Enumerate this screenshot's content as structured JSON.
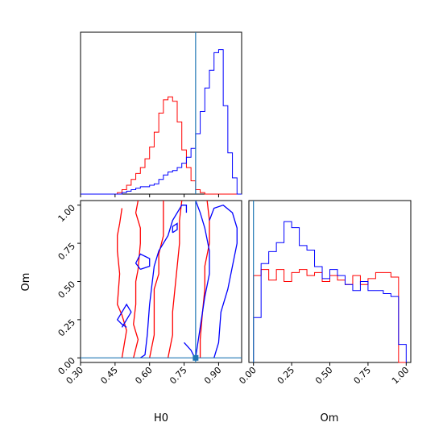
{
  "chart_data": {
    "type": "corner",
    "colors": {
      "series_a": "#ff0000",
      "series_b": "#0000ff",
      "truth": "#1f77b4"
    },
    "truth": {
      "H0": 0.8,
      "Om": 0.0
    },
    "axes": {
      "H0": {
        "label": "H0",
        "range": [
          0.3,
          1.0
        ],
        "ticks": [
          "0.30",
          "0.45",
          "0.60",
          "0.75",
          "0.90"
        ],
        "tick_values": [
          0.3,
          0.45,
          0.6,
          0.75,
          0.9
        ]
      },
      "Om": {
        "label": "Om",
        "range": [
          -0.03,
          1.03
        ],
        "ticks": [
          "0.00",
          "0.25",
          "0.50",
          "0.75",
          "1.00"
        ],
        "tick_values": [
          0,
          0.25,
          0.5,
          0.75,
          1.0
        ]
      }
    },
    "hist_H0": {
      "bin_edges": [
        0.3,
        0.32,
        0.34,
        0.36,
        0.38,
        0.4,
        0.42,
        0.44,
        0.46,
        0.48,
        0.5,
        0.52,
        0.54,
        0.56,
        0.58,
        0.6,
        0.62,
        0.64,
        0.66,
        0.68,
        0.7,
        0.72,
        0.74,
        0.76,
        0.78,
        0.8,
        0.82,
        0.84,
        0.86,
        0.88,
        0.9,
        0.92,
        0.94,
        0.96,
        0.98,
        1.0
      ],
      "series": [
        {
          "color": "red",
          "counts": [
            0,
            0,
            0,
            0,
            0,
            0,
            0,
            0,
            0.01,
            0.03,
            0.06,
            0.1,
            0.14,
            0.18,
            0.24,
            0.32,
            0.42,
            0.55,
            0.64,
            0.66,
            0.63,
            0.49,
            0.3,
            0.18,
            0.09,
            0.03,
            0.01,
            0,
            0,
            0,
            0,
            0,
            0,
            0,
            0
          ]
        },
        {
          "color": "blue",
          "counts": [
            0,
            0,
            0,
            0,
            0,
            0,
            0,
            0,
            0,
            0.01,
            0.02,
            0.03,
            0.04,
            0.05,
            0.05,
            0.06,
            0.07,
            0.1,
            0.13,
            0.15,
            0.16,
            0.18,
            0.21,
            0.25,
            0.31,
            0.41,
            0.56,
            0.72,
            0.84,
            0.96,
            0.98,
            0.6,
            0.28,
            0.11,
            0
          ]
        }
      ]
    },
    "hist_Om": {
      "bin_edges": [
        0.0,
        0.05,
        0.1,
        0.15,
        0.2,
        0.25,
        0.3,
        0.35,
        0.4,
        0.45,
        0.5,
        0.55,
        0.6,
        0.65,
        0.7,
        0.75,
        0.8,
        0.85,
        0.9,
        0.95,
        1.0
      ],
      "series": [
        {
          "color": "red",
          "counts": [
            0.58,
            0.62,
            0.55,
            0.62,
            0.54,
            0.6,
            0.62,
            0.58,
            0.6,
            0.54,
            0.58,
            0.55,
            0.52,
            0.58,
            0.52,
            0.56,
            0.6,
            0.6,
            0.57,
            0.0
          ]
        },
        {
          "color": "blue",
          "counts": [
            0.3,
            0.66,
            0.74,
            0.8,
            0.94,
            0.9,
            0.78,
            0.75,
            0.64,
            0.56,
            0.62,
            0.58,
            0.52,
            0.48,
            0.54,
            0.48,
            0.48,
            0.46,
            0.44,
            0.12
          ]
        }
      ]
    },
    "contours": {
      "series_a": [
        {
          "H0": [
            0.48,
            0.5,
            0.48,
            0.46,
            0.47,
            0.46,
            0.46,
            0.47,
            0.48
          ],
          "Om": [
            0.0,
            0.18,
            0.28,
            0.35,
            0.55,
            0.7,
            0.8,
            0.88,
            0.98
          ]
        },
        {
          "H0": [
            0.53,
            0.55,
            0.53,
            0.54,
            0.54,
            0.55,
            0.56,
            0.56,
            0.54,
            0.55
          ],
          "Om": [
            0.0,
            0.12,
            0.22,
            0.35,
            0.5,
            0.58,
            0.75,
            0.85,
            0.95,
            1.03
          ]
        },
        {
          "H0": [
            0.6,
            0.62,
            0.62,
            0.62,
            0.64,
            0.64,
            0.66,
            0.66,
            0.66
          ],
          "Om": [
            0.0,
            0.15,
            0.3,
            0.45,
            0.55,
            0.68,
            0.8,
            0.92,
            1.03
          ]
        },
        {
          "H0": [
            0.68,
            0.7,
            0.7,
            0.71,
            0.72,
            0.73,
            0.73,
            0.74
          ],
          "Om": [
            0.0,
            0.15,
            0.3,
            0.45,
            0.6,
            0.75,
            0.9,
            1.03
          ]
        },
        {
          "H0": [
            0.82,
            0.82,
            0.83,
            0.84,
            0.84,
            0.86,
            0.86,
            0.85
          ],
          "Om": [
            0.0,
            0.12,
            0.3,
            0.45,
            0.6,
            0.75,
            0.9,
            1.03
          ]
        }
      ],
      "series_b": [
        {
          "H0": [
            0.56,
            0.58,
            0.59,
            0.6,
            0.62,
            0.64,
            0.68,
            0.7,
            0.74,
            0.76,
            0.76
          ],
          "Om": [
            0.0,
            0.02,
            0.15,
            0.35,
            0.6,
            0.7,
            0.8,
            0.9,
            1.0,
            1.0,
            0.95
          ]
        },
        {
          "H0": [
            0.48,
            0.5,
            0.52,
            0.5,
            0.48,
            0.46,
            0.48,
            0.5
          ],
          "Om": [
            0.2,
            0.25,
            0.3,
            0.35,
            0.3,
            0.25,
            0.22,
            0.2
          ]
        },
        {
          "H0": [
            0.56,
            0.6,
            0.6,
            0.56,
            0.54,
            0.56
          ],
          "Om": [
            0.58,
            0.6,
            0.65,
            0.68,
            0.62,
            0.58
          ]
        },
        {
          "H0": [
            0.7,
            0.72,
            0.72,
            0.7,
            0.7
          ],
          "Om": [
            0.82,
            0.84,
            0.88,
            0.86,
            0.82
          ]
        },
        {
          "H0": [
            0.88,
            0.9,
            0.91,
            0.94,
            0.96,
            0.98,
            0.98,
            0.96,
            0.92,
            0.88,
            0.86
          ],
          "Om": [
            0.0,
            0.1,
            0.3,
            0.45,
            0.6,
            0.75,
            0.85,
            0.95,
            1.0,
            0.98,
            0.9
          ]
        },
        {
          "H0": [
            0.8,
            0.82,
            0.84,
            0.86,
            0.86,
            0.84,
            0.82,
            0.8
          ],
          "Om": [
            0.0,
            0.2,
            0.4,
            0.55,
            0.7,
            0.85,
            0.95,
            1.03
          ]
        },
        {
          "H0": [
            0.75,
            0.78,
            0.79,
            0.8
          ],
          "Om": [
            0.1,
            0.05,
            0.02,
            0.0
          ]
        }
      ]
    },
    "truth_point": {
      "H0": 0.8,
      "Om": 0.0
    }
  }
}
